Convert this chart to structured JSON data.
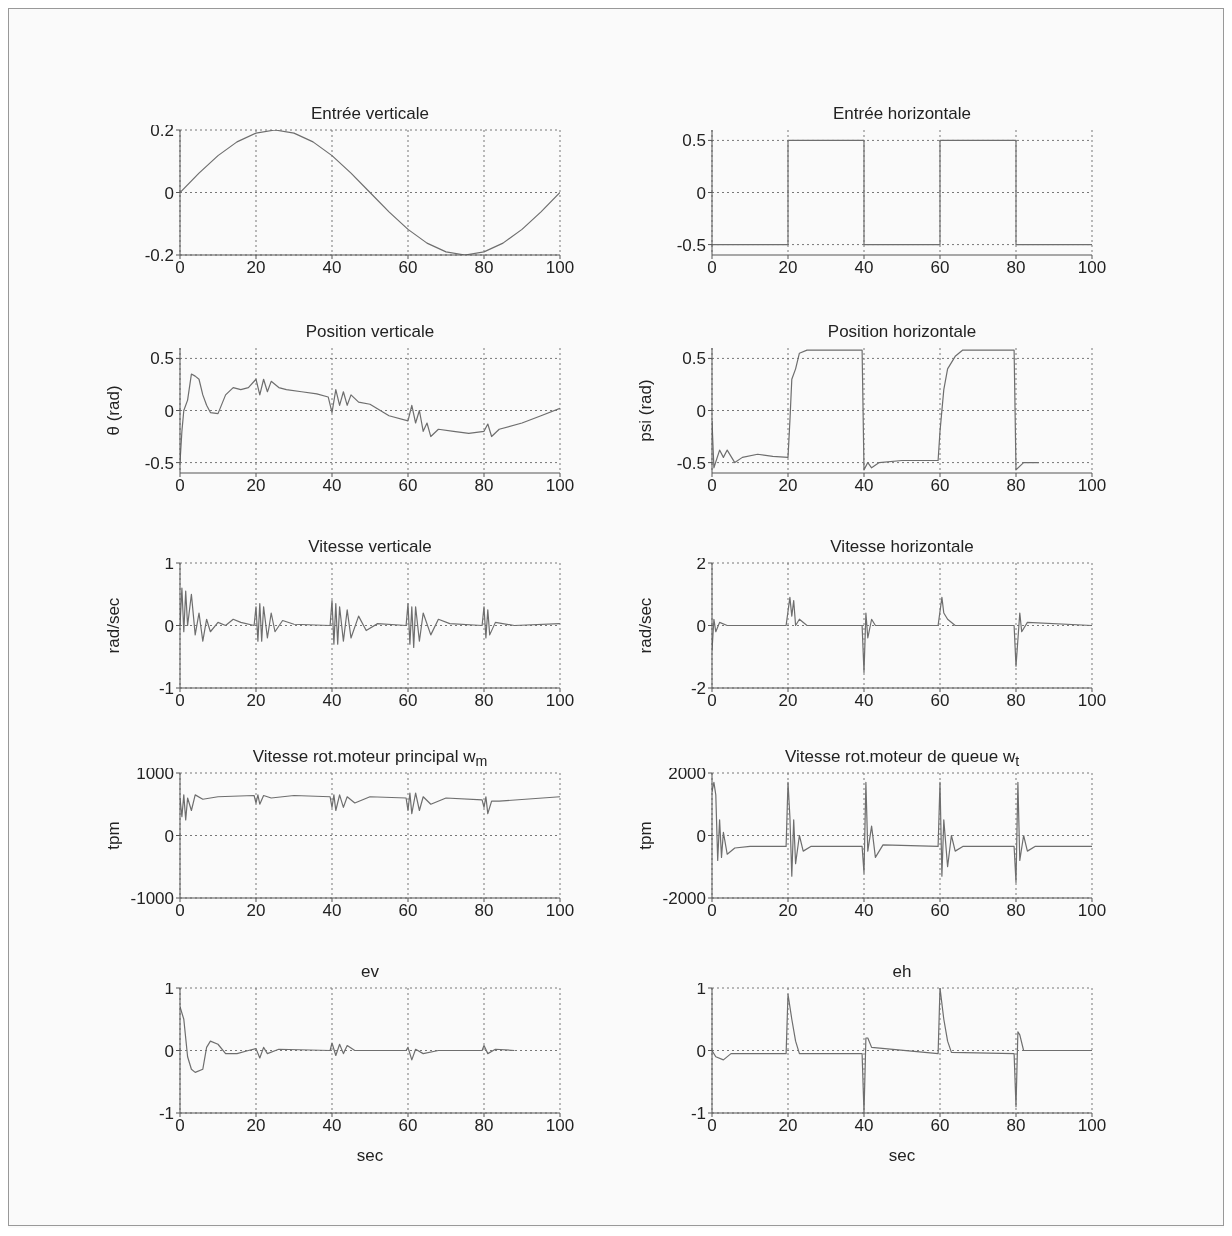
{
  "chart_data": [
    {
      "type": "line",
      "title": "Entrée verticale",
      "color": "#6e6e6e",
      "grid": true,
      "xlim": [
        0,
        100
      ],
      "xticks": [
        0,
        20,
        40,
        60,
        80,
        100
      ],
      "ylim": [
        -0.2,
        0.2
      ],
      "yticks": [
        -0.2,
        0,
        0.2
      ],
      "x": [
        0,
        5,
        10,
        15,
        20,
        25,
        30,
        35,
        40,
        45,
        50,
        55,
        60,
        65,
        70,
        75,
        80,
        85,
        90,
        95,
        100
      ],
      "values": [
        0,
        0.062,
        0.118,
        0.162,
        0.19,
        0.2,
        0.19,
        0.162,
        0.118,
        0.062,
        0,
        -0.062,
        -0.118,
        -0.162,
        -0.19,
        -0.2,
        -0.19,
        -0.162,
        -0.118,
        -0.062,
        0
      ]
    },
    {
      "type": "line",
      "title": "Entrée horizontale",
      "color": "#6e6e6e",
      "grid": true,
      "xlim": [
        0,
        100
      ],
      "xticks": [
        0,
        20,
        40,
        60,
        80,
        100
      ],
      "ylim": [
        -0.6,
        0.6
      ],
      "yticks": [
        -0.5,
        0,
        0.5
      ],
      "x": [
        0,
        20,
        20,
        40,
        40,
        60,
        60,
        80,
        80,
        100
      ],
      "values": [
        -0.5,
        -0.5,
        0.5,
        0.5,
        -0.5,
        -0.5,
        0.5,
        0.5,
        -0.5,
        -0.5
      ]
    },
    {
      "type": "line",
      "title": "Position verticale",
      "ylabel": "θ (rad)",
      "color": "#6e6e6e",
      "grid": true,
      "xlim": [
        0,
        100
      ],
      "xticks": [
        0,
        20,
        40,
        60,
        80,
        100
      ],
      "ylim": [
        -0.6,
        0.6
      ],
      "yticks": [
        -0.5,
        0,
        0.5
      ],
      "x": [
        0,
        0.5,
        1,
        2,
        3,
        4,
        5,
        6,
        7,
        8,
        10,
        12,
        14,
        16,
        18,
        20,
        21,
        22,
        23,
        24,
        26,
        28,
        32,
        36,
        39,
        40,
        41,
        42,
        43,
        44,
        45,
        47,
        50,
        55,
        60,
        61,
        62,
        63,
        64,
        65,
        66,
        68,
        72,
        76,
        80,
        81,
        82,
        84,
        90,
        95,
        100
      ],
      "values": [
        -0.5,
        -0.2,
        0,
        0.1,
        0.35,
        0.33,
        0.3,
        0.15,
        0.05,
        -0.02,
        -0.03,
        0.15,
        0.22,
        0.2,
        0.22,
        0.3,
        0.15,
        0.3,
        0.18,
        0.28,
        0.22,
        0.2,
        0.18,
        0.16,
        0.13,
        -0.02,
        0.2,
        0.05,
        0.18,
        0.05,
        0.15,
        0.08,
        0.06,
        -0.05,
        -0.1,
        0.05,
        -0.12,
        0,
        -0.2,
        -0.12,
        -0.25,
        -0.18,
        -0.2,
        -0.22,
        -0.2,
        -0.13,
        -0.25,
        -0.18,
        -0.12,
        -0.05,
        0.02
      ]
    },
    {
      "type": "line",
      "title": "Position horizontale",
      "ylabel": "psi (rad)",
      "color": "#6e6e6e",
      "grid": true,
      "xlim": [
        0,
        100
      ],
      "xticks": [
        0,
        20,
        40,
        60,
        80,
        100
      ],
      "ylim": [
        -0.6,
        0.6
      ],
      "yticks": [
        -0.5,
        0,
        0.5
      ],
      "x": [
        0,
        0.5,
        2,
        3,
        4,
        6,
        8,
        12,
        16,
        20,
        20.5,
        21,
        22,
        23,
        25,
        30,
        39.5,
        40,
        41,
        42,
        44,
        50,
        59.5,
        60,
        61,
        62,
        64,
        66,
        79.5,
        80,
        82,
        84,
        86
      ],
      "values": [
        -0.1,
        -0.55,
        -0.38,
        -0.45,
        -0.38,
        -0.5,
        -0.45,
        -0.42,
        -0.44,
        -0.45,
        -0.1,
        0.3,
        0.4,
        0.55,
        0.58,
        0.58,
        0.58,
        -0.57,
        -0.5,
        -0.55,
        -0.5,
        -0.48,
        -0.48,
        -0.2,
        0.2,
        0.4,
        0.52,
        0.58,
        0.58,
        -0.57,
        -0.5,
        -0.5,
        -0.5
      ]
    },
    {
      "type": "line",
      "title": "Vitesse verticale",
      "ylabel": "rad/sec",
      "color": "#6e6e6e",
      "grid": true,
      "xlim": [
        0,
        100
      ],
      "xticks": [
        0,
        20,
        40,
        60,
        80,
        100
      ],
      "ylim": [
        -1,
        1
      ],
      "yticks": [
        -1,
        0,
        1
      ],
      "x": [
        0,
        0.5,
        1,
        1.5,
        2,
        3,
        4,
        5,
        6,
        7,
        8,
        10,
        12,
        14,
        16,
        19.5,
        20,
        20.5,
        21,
        21.5,
        22,
        23,
        24,
        25,
        27,
        30,
        39.5,
        40,
        40.5,
        41,
        41.5,
        42,
        43,
        44,
        45,
        47,
        49,
        52,
        59.5,
        60,
        60.5,
        61,
        61.5,
        62,
        63,
        64,
        66,
        68,
        71,
        79.5,
        80,
        80.5,
        81,
        81.5,
        83,
        88,
        100
      ],
      "values": [
        0,
        0.6,
        -0.1,
        0.55,
        0,
        0.5,
        -0.15,
        0.2,
        -0.25,
        0.1,
        -0.1,
        0.05,
        0,
        0.1,
        0.05,
        0,
        0.3,
        -0.25,
        0.35,
        -0.25,
        0.3,
        -0.2,
        0.2,
        -0.1,
        0.08,
        0.02,
        0,
        0.4,
        -0.3,
        0.35,
        -0.3,
        0.3,
        -0.25,
        0.25,
        -0.2,
        0.15,
        -0.08,
        0.03,
        0,
        0.35,
        -0.3,
        0.3,
        -0.35,
        0.3,
        -0.25,
        0.2,
        -0.15,
        0.1,
        0.03,
        0,
        0.3,
        -0.2,
        0.25,
        -0.15,
        0.05,
        0,
        0.03
      ]
    },
    {
      "type": "line",
      "title": "Vitesse horizontale",
      "ylabel": "rad/sec",
      "color": "#6e6e6e",
      "grid": true,
      "xlim": [
        0,
        100
      ],
      "xticks": [
        0,
        20,
        40,
        60,
        80,
        100
      ],
      "ylim": [
        -2,
        2
      ],
      "yticks": [
        -2,
        0,
        2
      ],
      "x": [
        0,
        0.5,
        1,
        2,
        4,
        19.5,
        20.5,
        21,
        21.5,
        22,
        23,
        25,
        39.5,
        40,
        40.5,
        41,
        42,
        43,
        59.5,
        60.5,
        61,
        62,
        64,
        79.5,
        80,
        81,
        81.5,
        83,
        100
      ],
      "values": [
        -0.8,
        0.2,
        -0.2,
        0.1,
        0,
        0,
        0.9,
        0.3,
        0.8,
        0,
        0.2,
        0,
        0,
        -1.5,
        0.4,
        -0.4,
        0.2,
        0,
        0,
        0.9,
        0.4,
        0.2,
        0,
        0,
        -1.3,
        0.4,
        -0.2,
        0.1,
        0
      ]
    },
    {
      "type": "line",
      "title": "Vitesse rot.moteur principal w$_{m}$",
      "ylabel": "tpm",
      "color": "#6e6e6e",
      "grid": true,
      "xlim": [
        0,
        100
      ],
      "xticks": [
        0,
        20,
        40,
        60,
        80,
        100
      ],
      "ylim": [
        -1000,
        1000
      ],
      "yticks": [
        -1000,
        0,
        1000
      ],
      "x": [
        0,
        0.5,
        1,
        1.5,
        2,
        3,
        4,
        6,
        10,
        19.5,
        20,
        20.5,
        21,
        22,
        24,
        30,
        39.5,
        40,
        40.5,
        41,
        42,
        43,
        44,
        46,
        50,
        59.5,
        60,
        60.5,
        61,
        62,
        63,
        64,
        66,
        70,
        79.5,
        80,
        80.5,
        81,
        82,
        84,
        100
      ],
      "values": [
        600,
        300,
        650,
        250,
        600,
        400,
        650,
        580,
        620,
        640,
        520,
        650,
        500,
        640,
        600,
        640,
        620,
        450,
        650,
        400,
        650,
        450,
        620,
        520,
        620,
        600,
        400,
        680,
        350,
        680,
        400,
        620,
        500,
        600,
        570,
        450,
        620,
        350,
        550,
        550,
        620
      ]
    },
    {
      "type": "line",
      "title": "Vitesse rot.moteur de queue w$_{t}$",
      "ylabel": "tpm",
      "color": "#6e6e6e",
      "grid": true,
      "xlim": [
        0,
        100
      ],
      "xticks": [
        0,
        20,
        40,
        60,
        80,
        100
      ],
      "ylim": [
        -2000,
        2000
      ],
      "yticks": [
        -2000,
        0,
        2000
      ],
      "x": [
        0,
        0.5,
        1,
        1.5,
        2,
        2.5,
        3,
        4,
        6,
        10,
        19.5,
        20,
        20.5,
        21,
        21.5,
        22,
        23,
        24,
        26,
        39.5,
        40,
        40.5,
        41,
        42,
        43,
        45,
        59.5,
        60,
        60.5,
        61,
        62,
        63,
        64,
        66,
        79.5,
        80,
        80.5,
        81,
        82,
        83,
        85,
        100
      ],
      "values": [
        1400,
        1700,
        1300,
        -800,
        500,
        -700,
        100,
        -600,
        -400,
        -350,
        -350,
        1700,
        600,
        -1300,
        500,
        -900,
        0,
        -500,
        -350,
        -350,
        -1200,
        1700,
        -500,
        300,
        -700,
        -300,
        -350,
        1700,
        -1300,
        500,
        -1000,
        0,
        -500,
        -350,
        -350,
        -1500,
        1700,
        -800,
        0,
        -500,
        -350,
        -350
      ]
    },
    {
      "type": "line",
      "title": "ev",
      "xlabel": "sec",
      "color": "#6e6e6e",
      "grid": true,
      "xlim": [
        0,
        100
      ],
      "xticks": [
        0,
        20,
        40,
        60,
        80,
        100
      ],
      "ylim": [
        -1,
        1
      ],
      "yticks": [
        -1,
        0,
        1
      ],
      "x": [
        0,
        1,
        2,
        3,
        4,
        6,
        7,
        8,
        10,
        12,
        15,
        18,
        20,
        21,
        22,
        23,
        26,
        39.5,
        40,
        41,
        42,
        43,
        44,
        46,
        59.5,
        60,
        61,
        62,
        64,
        68,
        79.5,
        80,
        81,
        83,
        88
      ],
      "values": [
        0.7,
        0.5,
        -0.1,
        -0.3,
        -0.35,
        -0.3,
        0.05,
        0.15,
        0.1,
        -0.05,
        -0.05,
        0,
        0.03,
        -0.12,
        0.05,
        -0.05,
        0.02,
        0,
        0.12,
        -0.08,
        0.1,
        -0.05,
        0.08,
        0,
        0,
        0.05,
        -0.15,
        0.02,
        -0.05,
        0,
        0,
        0.08,
        -0.05,
        0.02,
        0
      ]
    },
    {
      "type": "line",
      "title": "eh",
      "xlabel": "sec",
      "color": "#6e6e6e",
      "grid": true,
      "xlim": [
        0,
        100
      ],
      "xticks": [
        0,
        20,
        40,
        60,
        80,
        100
      ],
      "ylim": [
        -1,
        1
      ],
      "yticks": [
        -1,
        0,
        1
      ],
      "x": [
        0,
        1,
        3,
        5,
        19.5,
        20,
        21,
        22,
        23,
        39.5,
        40,
        40.5,
        41,
        42,
        59.5,
        60,
        61,
        62,
        63,
        79.5,
        80,
        80.5,
        81,
        82,
        100
      ],
      "values": [
        0,
        -0.1,
        -0.15,
        -0.05,
        -0.05,
        0.9,
        0.5,
        0.15,
        -0.05,
        -0.05,
        -1,
        0.2,
        0.2,
        0.05,
        -0.05,
        1,
        0.5,
        0.15,
        -0.03,
        -0.05,
        -0.9,
        0.3,
        0.25,
        0,
        0
      ]
    }
  ]
}
